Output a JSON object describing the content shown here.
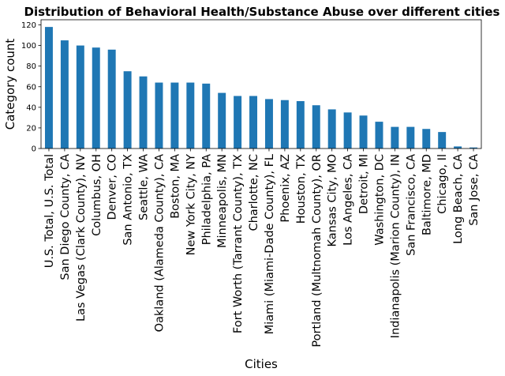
{
  "chart_data": {
    "type": "bar",
    "title": "Distribution of Behavioral Health/Substance Abuse over different cities",
    "xlabel": "Cities",
    "ylabel": "Category count",
    "ylim": [
      0,
      125
    ],
    "yticks": [
      "0",
      "20",
      "40",
      "60",
      "80",
      "100",
      "120"
    ],
    "grid": false,
    "bar_color": "#1f77b4",
    "categories": [
      "U.S. Total, U.S. Total",
      "San Diego County, CA",
      "Las Vegas (Clark County), NV",
      "Columbus, OH",
      "Denver, CO",
      "San Antonio, TX",
      "Seattle, WA",
      "Oakland (Alameda County), CA",
      "Boston, MA",
      "New York City, NY",
      "Philadelphia, PA",
      "Minneapolis, MN",
      "Fort Worth (Tarrant County), TX",
      "Charlotte, NC",
      "Miami (Miami-Dade County), FL",
      "Phoenix, AZ",
      "Houston, TX",
      "Portland (Multnomah County), OR",
      "Kansas City, MO",
      "Los Angeles, CA",
      "Detroit, MI",
      "Washington, DC",
      "Indianapolis (Marion County), IN",
      "San Francisco, CA",
      "Baltimore, MD",
      "Chicago, Il",
      "Long Beach, CA",
      "San Jose, CA"
    ],
    "values": [
      118,
      105,
      100,
      98,
      96,
      75,
      70,
      64,
      64,
      64,
      63,
      54,
      51,
      51,
      48,
      47,
      46,
      42,
      38,
      35,
      32,
      26,
      21,
      21,
      19,
      16,
      2,
      1
    ]
  }
}
